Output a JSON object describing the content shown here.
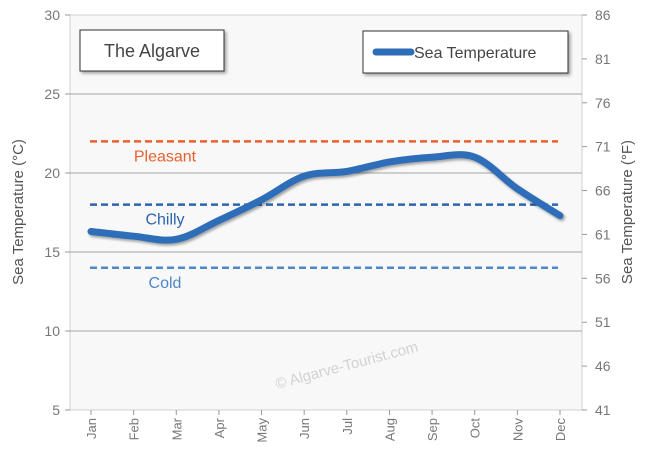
{
  "chart_data": {
    "type": "line",
    "title": "The Algarve",
    "ylabel": "Sea Temperature (°C)",
    "ylabel_right": "Sea Temperature (°F)",
    "ylim": [
      5,
      30
    ],
    "ylim_right": [
      41,
      86
    ],
    "yticks": [
      5,
      10,
      15,
      20,
      25,
      30
    ],
    "yticks_right": [
      41,
      46,
      51,
      56,
      61,
      66,
      71,
      76,
      81,
      86
    ],
    "categories": [
      "Jan",
      "Feb",
      "Mar",
      "Apr",
      "May",
      "Jun",
      "Jul",
      "Aug",
      "Sep",
      "Oct",
      "Nov",
      "Dec"
    ],
    "series": [
      {
        "name": "Sea Temperature",
        "color": "#2f6db8",
        "values": [
          16.3,
          16.0,
          15.8,
          17.0,
          18.3,
          19.8,
          20.1,
          20.7,
          21.0,
          21.0,
          19.0,
          17.3
        ]
      }
    ],
    "legend_position": "top-right",
    "grid": true,
    "reference_lines": [
      {
        "label": "Pleasant",
        "value": 22,
        "color": "#e8612c"
      },
      {
        "label": "Chilly",
        "value": 18,
        "color": "#2e64ad"
      },
      {
        "label": "Cold",
        "value": 14,
        "color": "#4f86c6"
      }
    ],
    "watermark": "© Algarve-Tourist.com"
  }
}
